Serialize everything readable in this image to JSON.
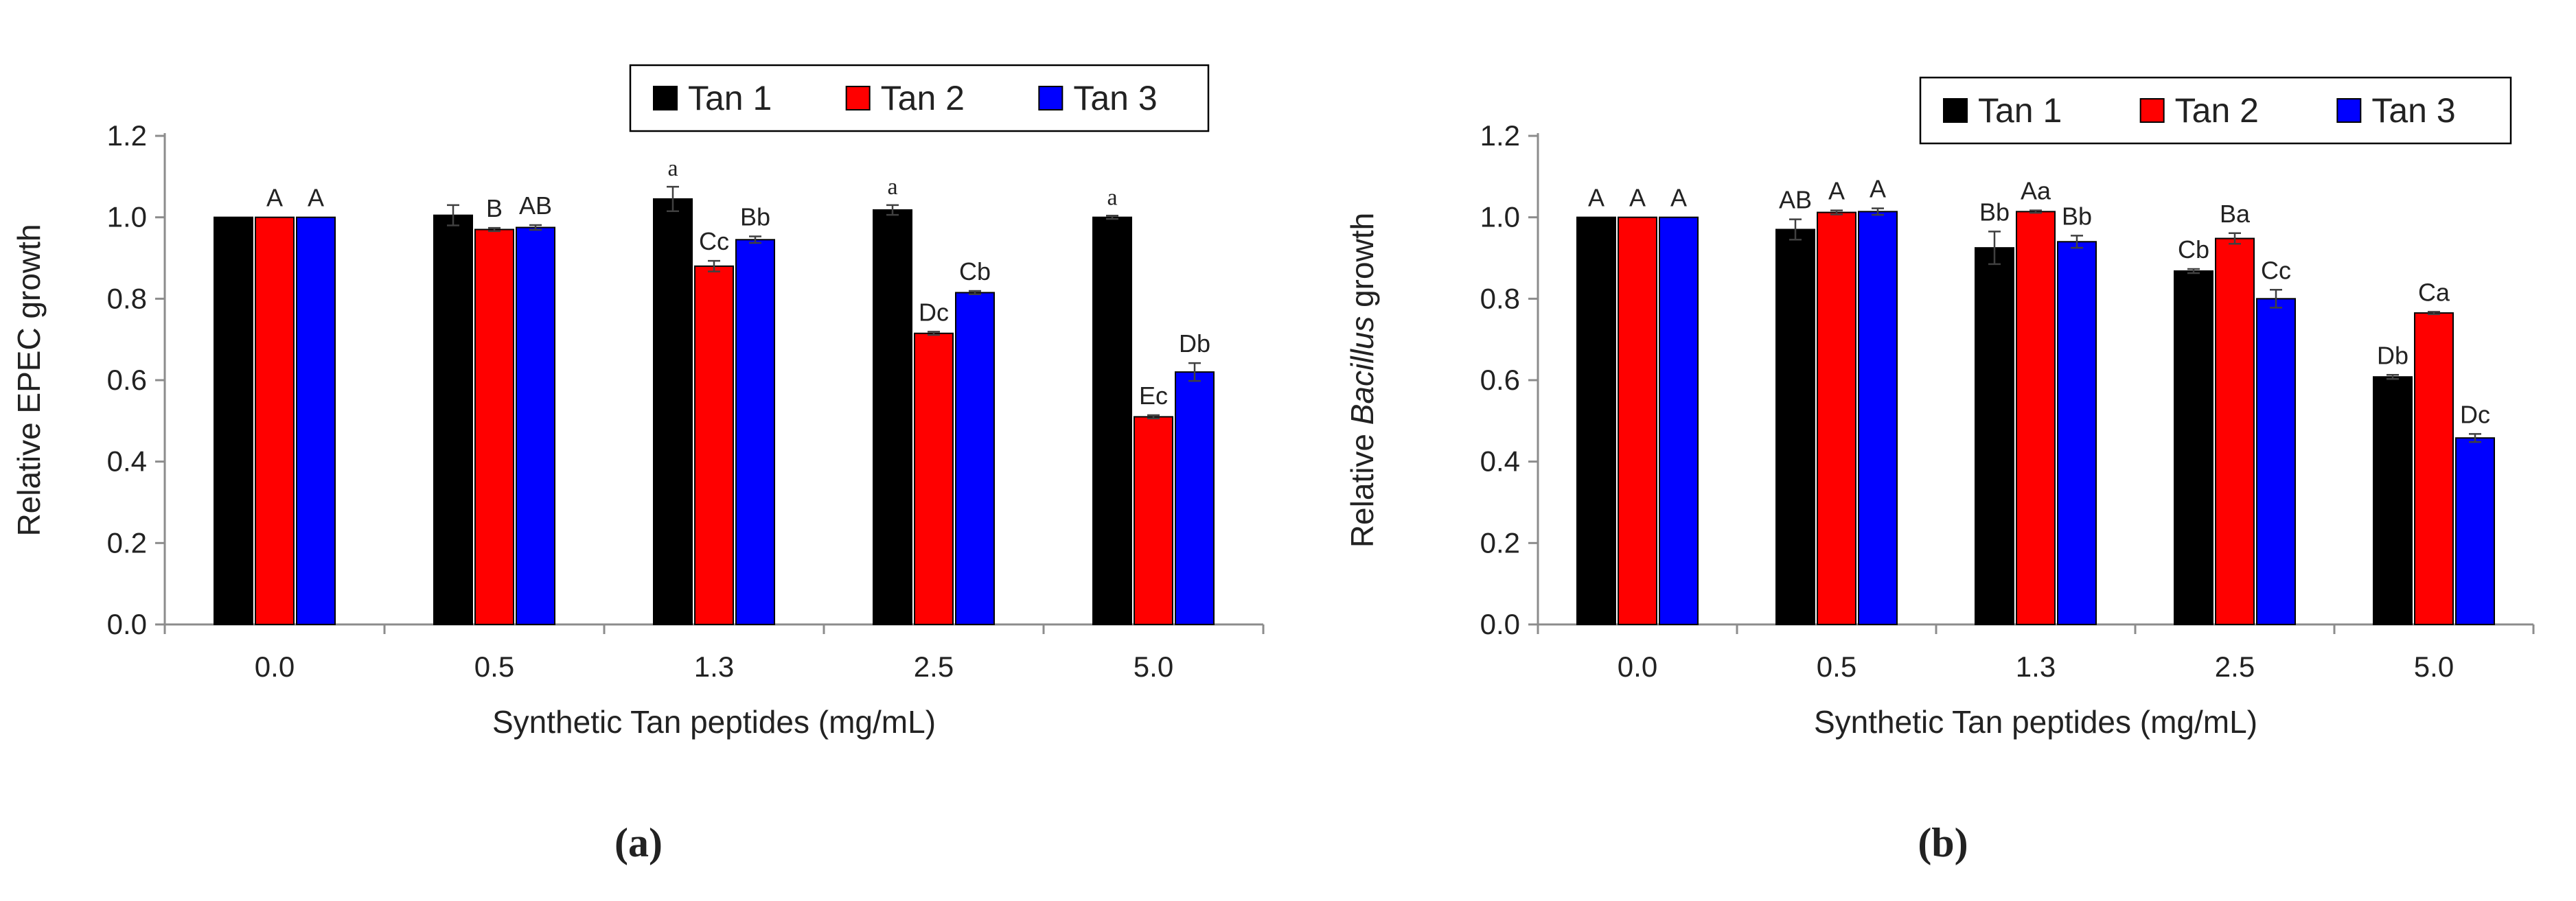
{
  "colors": {
    "Tan 1": "#000000",
    "Tan 2": "#ff0000",
    "Tan 3": "#0000ff"
  },
  "chart_data": [
    {
      "panel": "(a)",
      "type": "bar",
      "title": "",
      "xlabel": "Synthetic  Tan peptides (mg/mL)",
      "ylabel": "Relative EPEC growth",
      "ylim": [
        0,
        1.2
      ],
      "yticks": [
        "0.0",
        "0.2",
        "0.4",
        "0.6",
        "0.8",
        "1.0",
        "1.2"
      ],
      "categories": [
        "0.0",
        "0.5",
        "1.3",
        "2.5",
        "5.0"
      ],
      "legend_position": "top-right",
      "series": [
        {
          "name": "Tan 1",
          "values": [
            1.0,
            1.005,
            1.045,
            1.018,
            1.0
          ],
          "errors": [
            0,
            0.025,
            0.03,
            0.012,
            0.004
          ],
          "labels": [
            "",
            "",
            "a",
            "a",
            "a"
          ]
        },
        {
          "name": "Tan 2",
          "values": [
            1.0,
            0.97,
            0.88,
            0.715,
            0.51
          ],
          "errors": [
            0,
            0.004,
            0.013,
            0.004,
            0.004
          ],
          "labels": [
            "A",
            "B",
            "Cc",
            "Dc",
            "Ec"
          ]
        },
        {
          "name": "Tan 3",
          "values": [
            1.0,
            0.975,
            0.945,
            0.815,
            0.62
          ],
          "errors": [
            0,
            0.006,
            0.008,
            0.004,
            0.022
          ],
          "labels": [
            "A",
            "AB",
            "Bb",
            "Cb",
            "Db"
          ]
        }
      ]
    },
    {
      "panel": "(b)",
      "type": "bar",
      "title": "",
      "xlabel": "Synthetic  Tan peptides (mg/mL)",
      "ylabel_parts": [
        "Relative ",
        "Bacillus",
        " growth"
      ],
      "ylim": [
        0,
        1.2
      ],
      "yticks": [
        "0.0",
        "0.2",
        "0.4",
        "0.6",
        "0.8",
        "1.0",
        "1.2"
      ],
      "categories": [
        "0.0",
        "0.5",
        "1.3",
        "2.5",
        "5.0"
      ],
      "legend_position": "top-right",
      "series": [
        {
          "name": "Tan 1",
          "values": [
            1.0,
            0.97,
            0.925,
            0.868,
            0.608
          ],
          "errors": [
            0,
            0.025,
            0.04,
            0.005,
            0.005
          ],
          "labels": [
            "A",
            "AB",
            "Bb",
            "Cb",
            "Db"
          ]
        },
        {
          "name": "Tan 2",
          "values": [
            1.0,
            1.012,
            1.014,
            0.948,
            0.765
          ],
          "errors": [
            0,
            0.005,
            0.003,
            0.013,
            0.003
          ],
          "labels": [
            "A",
            "A",
            "Aa",
            "Ba",
            "Ca"
          ]
        },
        {
          "name": "Tan 3",
          "values": [
            1.0,
            1.014,
            0.94,
            0.8,
            0.458
          ],
          "errors": [
            0,
            0.008,
            0.015,
            0.022,
            0.01
          ],
          "labels": [
            "A",
            "A",
            "Bb",
            "Cc",
            "Dc"
          ]
        }
      ]
    }
  ]
}
